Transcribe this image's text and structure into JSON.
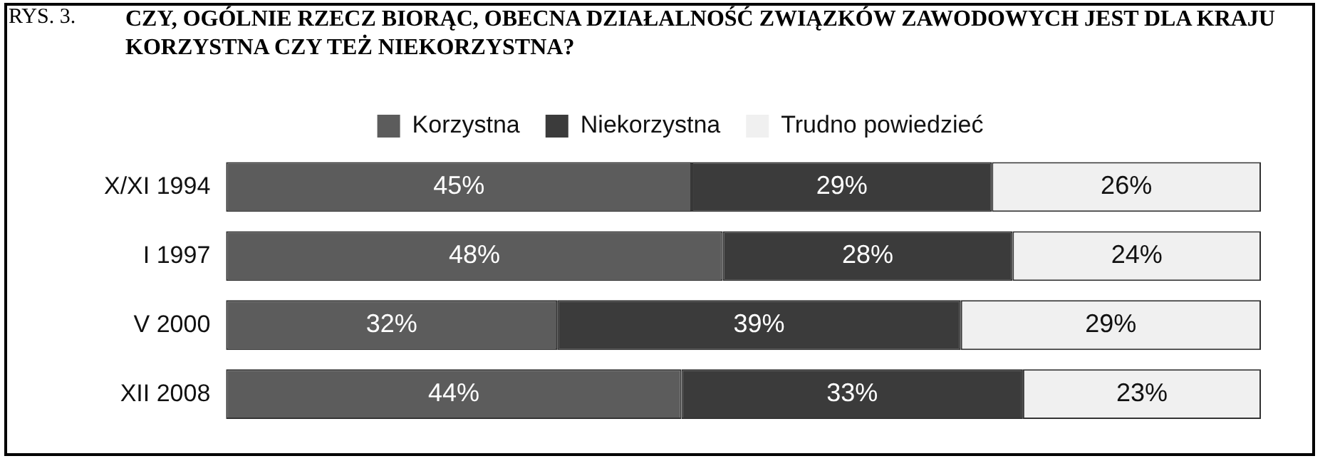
{
  "chart_data": {
    "type": "bar",
    "orientation": "horizontal",
    "stacked": true,
    "title": "CZY, OGÓLNIE RZECZ BIORĄC, OBECNA DZIAŁALNOŚĆ ZWIĄZKÓW ZAWODOWYCH JEST DLA KRAJU KORZYSTNA CZY TEŻ NIEKORZYSTNA?",
    "annotations": [
      "RYS. 3."
    ],
    "categories": [
      "X/XI 1994",
      "I 1997",
      "V 2000",
      "XII 2008"
    ],
    "legend": "top",
    "series": [
      {
        "name": "Korzystna",
        "color": "#5c5c5c",
        "values": [
          45,
          48,
          32,
          44
        ],
        "value_labels": [
          "45%",
          "48%",
          "32%",
          "44%"
        ]
      },
      {
        "name": "Niekorzystna",
        "color": "#3b3b3b",
        "values": [
          29,
          28,
          39,
          33
        ],
        "value_labels": [
          "29%",
          "28%",
          "39%",
          "33%"
        ]
      },
      {
        "name": "Trudno powiedzieć",
        "color": "#f0f0f0",
        "values": [
          26,
          24,
          29,
          23
        ],
        "value_labels": [
          "26%",
          "24%",
          "29%",
          "23%"
        ]
      }
    ]
  }
}
